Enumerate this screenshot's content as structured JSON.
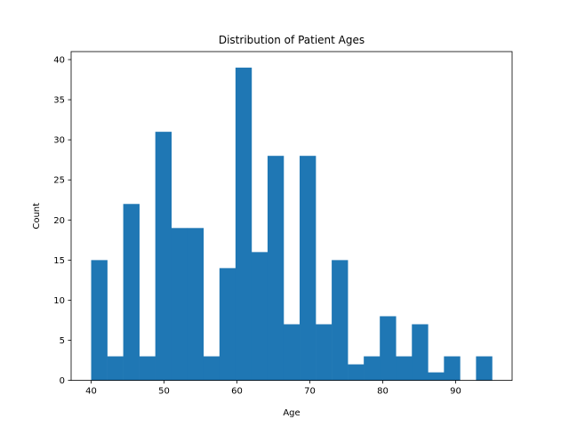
{
  "chart_data": {
    "type": "bar",
    "title": "Distribution of Patient Ages",
    "xlabel": "Age",
    "ylabel": "Count",
    "bin_start": 40,
    "bin_width": 2.2,
    "values": [
      15,
      3,
      22,
      3,
      31,
      19,
      19,
      3,
      14,
      39,
      16,
      28,
      7,
      28,
      7,
      15,
      2,
      3,
      8,
      3,
      7,
      1,
      3,
      0,
      3
    ],
    "xlim": [
      37.25,
      97.75
    ],
    "ylim": [
      0,
      41
    ],
    "xticks": [
      40,
      50,
      60,
      70,
      80,
      90
    ],
    "yticks": [
      0,
      5,
      10,
      15,
      20,
      25,
      30,
      35,
      40
    ],
    "bar_color": "#1f77b4",
    "grid": false
  }
}
